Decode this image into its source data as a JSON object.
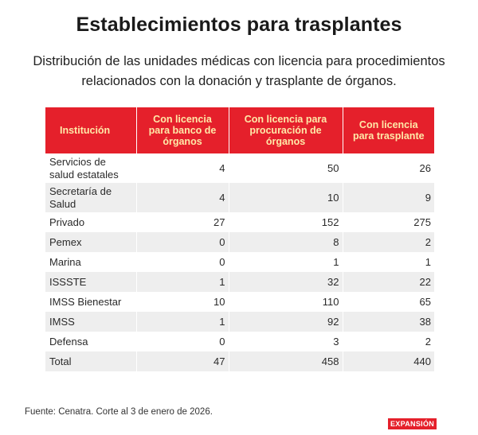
{
  "title": "Establecimientos para trasplantes",
  "subtitle": "Distribución de las unidades médicas con licencia para procedimientos relacionados con la donación y trasplante de órganos.",
  "chart_data": {
    "type": "table",
    "columns": [
      "Institución",
      "Con licencia para banco de órganos",
      "Con licencia para procuración de órganos",
      "Con licencia para trasplante"
    ],
    "rows": [
      {
        "institucion": "Servicios de salud estatales",
        "banco": "4",
        "procuracion": "50",
        "trasplante": "26"
      },
      {
        "institucion": "Secretaría de Salud",
        "banco": "4",
        "procuracion": "10",
        "trasplante": "9"
      },
      {
        "institucion": "Privado",
        "banco": "27",
        "procuracion": "152",
        "trasplante": "275"
      },
      {
        "institucion": "Pemex",
        "banco": "0",
        "procuracion": "8",
        "trasplante": "2"
      },
      {
        "institucion": "Marina",
        "banco": "0",
        "procuracion": "1",
        "trasplante": "1"
      },
      {
        "institucion": "ISSSTE",
        "banco": "1",
        "procuracion": "32",
        "trasplante": "22"
      },
      {
        "institucion": "IMSS Bienestar",
        "banco": "10",
        "procuracion": "110",
        "trasplante": "65"
      },
      {
        "institucion": "IMSS",
        "banco": "1",
        "procuracion": "92",
        "trasplante": "38"
      },
      {
        "institucion": "Defensa",
        "banco": "0",
        "procuracion": "3",
        "trasplante": "2"
      },
      {
        "institucion": "Total",
        "banco": "47",
        "procuracion": "458",
        "trasplante": "440"
      }
    ]
  },
  "source": "Fuente: Cenatra. Corte al 3 de enero de 2026.",
  "logo": "EXPANSIÓN",
  "colors": {
    "header_bg": "#e5202b",
    "header_text": "#ffe9a8",
    "stripe": "#eeeeee"
  }
}
